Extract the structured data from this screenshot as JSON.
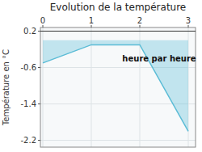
{
  "chart_data": {
    "type": "area",
    "title": "Evolution de la température",
    "y_label": "Température en °C",
    "x": [
      0,
      1,
      2,
      3
    ],
    "values": [
      -0.5,
      -0.1,
      -0.1,
      -2.0
    ],
    "color": "#5bbcd6",
    "xlim": [
      -0.05,
      3.15
    ],
    "ylim": [
      -2.35,
      0.28
    ],
    "xticks": [
      0,
      1,
      2,
      3
    ],
    "yticks": [
      0.2,
      -0.6,
      -1.4,
      -2.2
    ],
    "grid": true,
    "annotations": [
      {
        "text": "heure par heure",
        "x": 2.4,
        "y": -0.42
      }
    ]
  }
}
